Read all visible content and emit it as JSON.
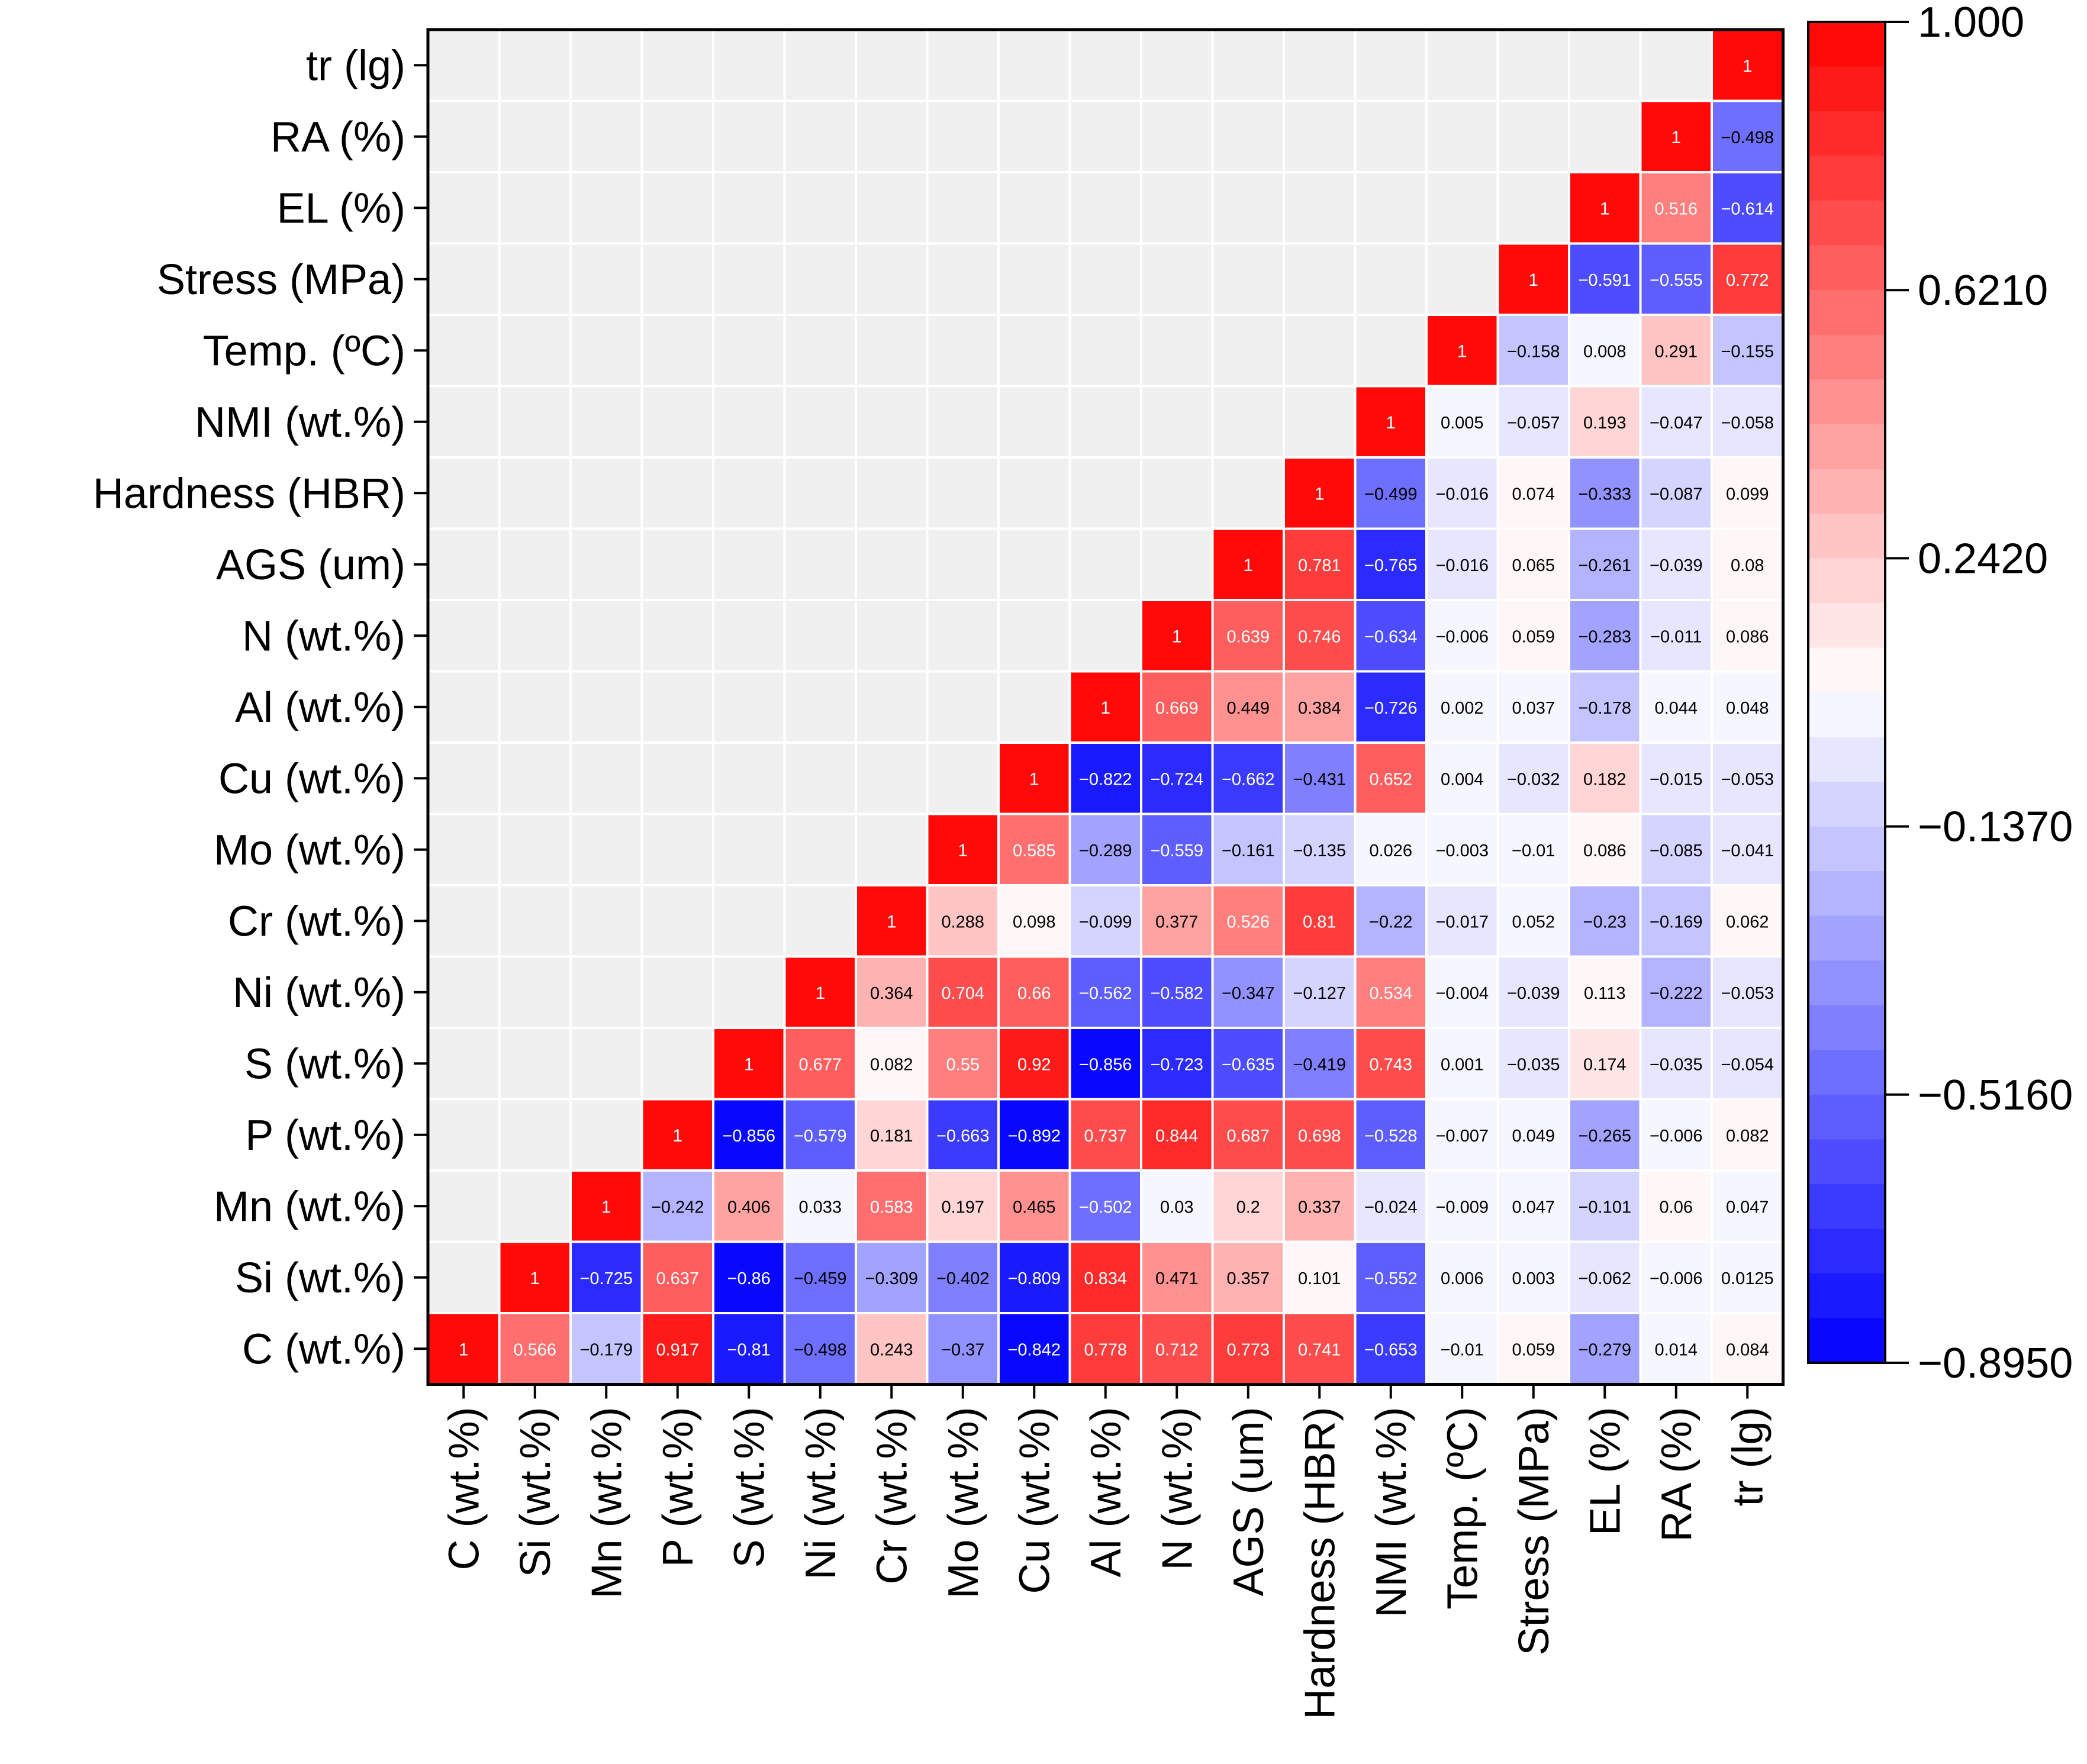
{
  "chart_data": {
    "type": "heatmap",
    "title": "",
    "variables": [
      "C (wt.%)",
      "Si (wt.%)",
      "Mn (wt.%)",
      "P (wt.%)",
      "S (wt.%)",
      "Ni (wt.%)",
      "Cr (wt.%)",
      "Mo (wt.%)",
      "Cu (wt.%)",
      "Al (wt.%)",
      "N (wt.%)",
      "AGS (um)",
      "Hardness (HBR)",
      "NMI (wt.%)",
      "Temp. (ºC)",
      "Stress (MPa)",
      "EL (%)",
      "RA (%)",
      "tr (lg)"
    ],
    "cells": [
      {
        "row": 0,
        "values": [
          "1",
          "0.566",
          "-0.179",
          "0.917",
          "-0.81",
          "-0.498",
          "0.243",
          "-0.37",
          "-0.842",
          "0.778",
          "0.712",
          "0.773",
          "0.741",
          "-0.653",
          "-0.01",
          "0.059",
          "-0.279",
          "0.014",
          "0.084"
        ]
      },
      {
        "row": 1,
        "values": [
          "1",
          "-0.725",
          "0.637",
          "-0.86",
          "-0.459",
          "-0.309",
          "-0.402",
          "-0.809",
          "0.834",
          "0.471",
          "0.357",
          "0.101",
          "-0.552",
          "0.006",
          "0.003",
          "-0.062",
          "-0.006",
          "0.0125"
        ]
      },
      {
        "row": 2,
        "values": [
          "1",
          "-0.242",
          "0.406",
          "0.033",
          "0.583",
          "0.197",
          "0.465",
          "-0.502",
          "0.03",
          "0.2",
          "0.337",
          "-0.024",
          "-0.009",
          "0.047",
          "-0.101",
          "0.06",
          "0.047"
        ]
      },
      {
        "row": 3,
        "values": [
          "1",
          "-0.856",
          "-0.579",
          "0.181",
          "-0.663",
          "-0.892",
          "0.737",
          "0.844",
          "0.687",
          "0.698",
          "-0.528",
          "-0.007",
          "0.049",
          "-0.265",
          "-0.006",
          "0.082"
        ]
      },
      {
        "row": 4,
        "values": [
          "1",
          "0.677",
          "0.082",
          "0.55",
          "0.92",
          "-0.856",
          "-0.723",
          "-0.635",
          "-0.419",
          "0.743",
          "0.001",
          "-0.035",
          "0.174",
          "-0.035",
          "-0.054"
        ]
      },
      {
        "row": 5,
        "values": [
          "1",
          "0.364",
          "0.704",
          "0.66",
          "-0.562",
          "-0.582",
          "-0.347",
          "-0.127",
          "0.534",
          "-0.004",
          "-0.039",
          "0.113",
          "-0.222",
          "-0.053"
        ]
      },
      {
        "row": 6,
        "values": [
          "1",
          "0.288",
          "0.098",
          "-0.099",
          "0.377",
          "0.526",
          "0.81",
          "-0.22",
          "-0.017",
          "0.052",
          "-0.23",
          "-0.169",
          "0.062"
        ]
      },
      {
        "row": 7,
        "values": [
          "1",
          "0.585",
          "-0.289",
          "-0.559",
          "-0.161",
          "-0.135",
          "0.026",
          "-0.003",
          "-0.01",
          "0.086",
          "-0.085",
          "-0.041"
        ]
      },
      {
        "row": 8,
        "values": [
          "1",
          "-0.822",
          "-0.724",
          "-0.662",
          "-0.431",
          "0.652",
          "0.004",
          "-0.032",
          "0.182",
          "-0.015",
          "-0.053"
        ]
      },
      {
        "row": 9,
        "values": [
          "1",
          "0.669",
          "0.449",
          "0.384",
          "-0.726",
          "0.002",
          "0.037",
          "-0.178",
          "0.044",
          "0.048"
        ]
      },
      {
        "row": 10,
        "values": [
          "1",
          "0.639",
          "0.746",
          "-0.634",
          "-0.006",
          "0.059",
          "-0.283",
          "-0.011",
          "0.086"
        ]
      },
      {
        "row": 11,
        "values": [
          "1",
          "0.781",
          "-0.765",
          "-0.016",
          "0.065",
          "-0.261",
          "-0.039",
          "0.08"
        ]
      },
      {
        "row": 12,
        "values": [
          "1",
          "-0.499",
          "-0.016",
          "0.074",
          "-0.333",
          "-0.087",
          "0.099"
        ]
      },
      {
        "row": 13,
        "values": [
          "1",
          "0.005",
          "-0.057",
          "0.193",
          "-0.047",
          "-0.058"
        ]
      },
      {
        "row": 14,
        "values": [
          "1",
          "-0.158",
          "0.008",
          "0.291",
          "-0.155"
        ]
      },
      {
        "row": 15,
        "values": [
          "1",
          "-0.591",
          "-0.555",
          "0.772"
        ]
      },
      {
        "row": 16,
        "values": [
          "1",
          "0.516",
          "-0.614"
        ]
      },
      {
        "row": 17,
        "values": [
          "1",
          "-0.498"
        ]
      },
      {
        "row": 18,
        "values": [
          "1"
        ]
      }
    ],
    "colorbar": {
      "min": -0.895,
      "max": 1.0,
      "ticks": [
        "1.000",
        "0.6210",
        "0.2420",
        "−0.1370",
        "−0.5160",
        "−0.8950"
      ],
      "tick_values": [
        1.0,
        0.621,
        0.242,
        -0.137,
        -0.516,
        -0.895
      ],
      "low_color": "#0000ff",
      "mid_color": "#ffffff",
      "high_color": "#ff0000"
    },
    "background_color": "#f0f0f0"
  }
}
